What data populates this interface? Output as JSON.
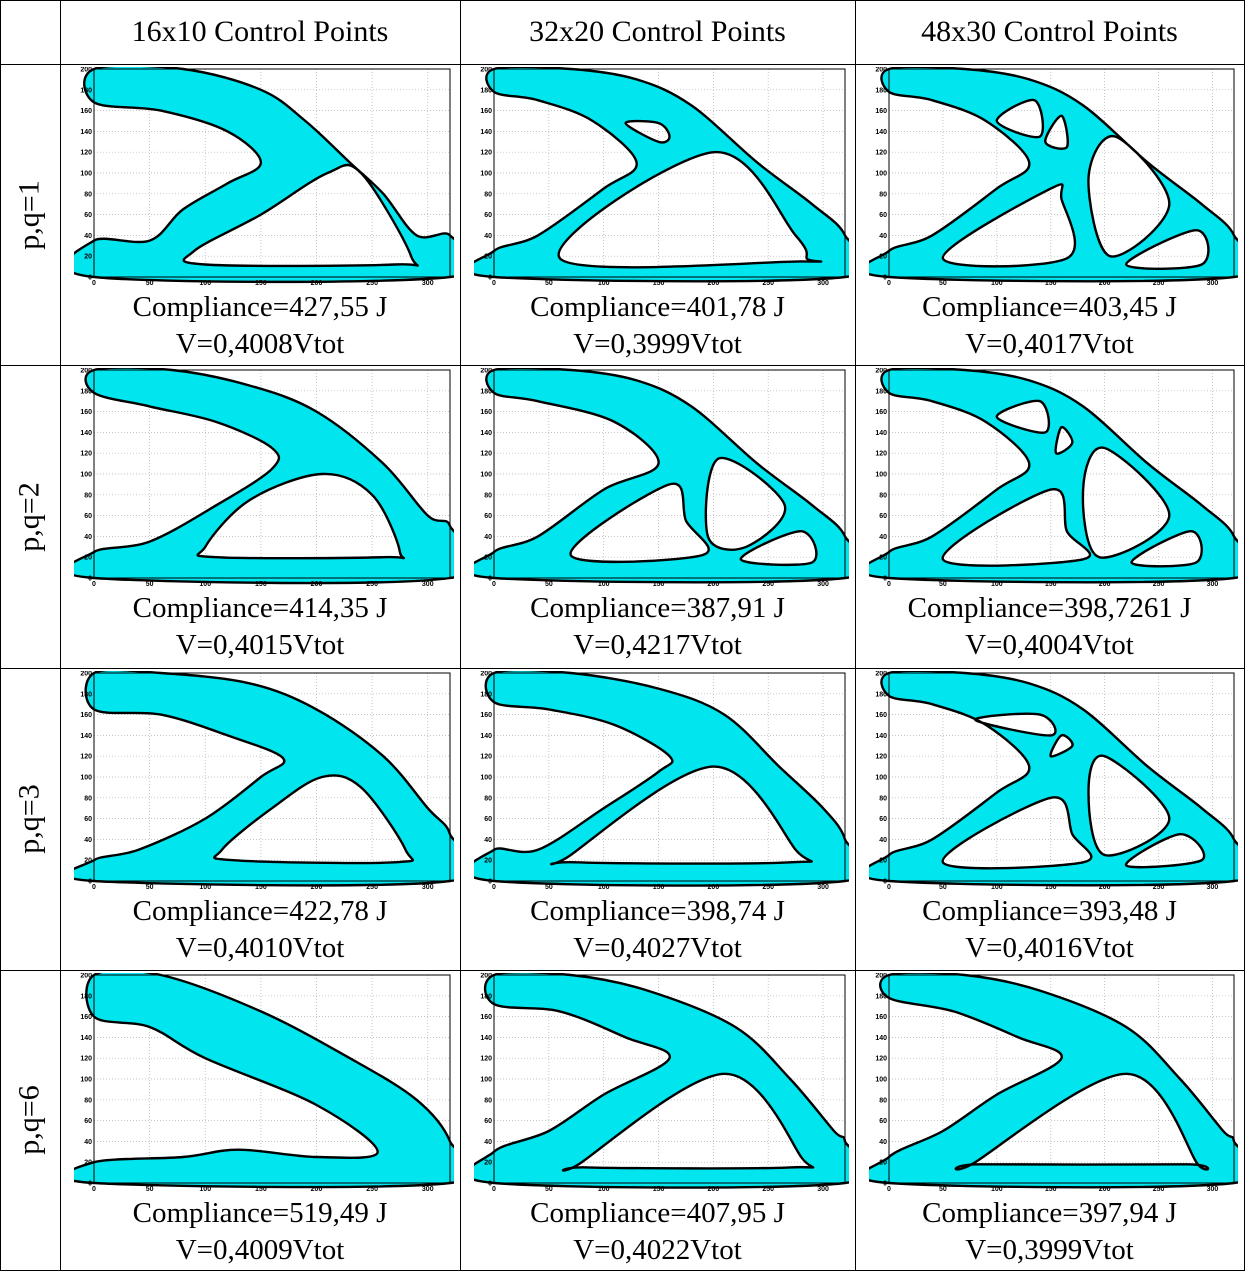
{
  "columns": [
    "16x10 Control Points",
    "32x20 Control Points",
    "48x30 Control Points"
  ],
  "rows": [
    {
      "label": "p,q=1",
      "cells": [
        {
          "compliance": "Compliance=427,55 J",
          "volume": "V=0,4008Vtot"
        },
        {
          "compliance": "Compliance=401,78 J",
          "volume": "V=0,3999Vtot"
        },
        {
          "compliance": "Compliance=403,45 J",
          "volume": "V=0,4017Vtot"
        }
      ]
    },
    {
      "label": "p,q=2",
      "cells": [
        {
          "compliance": "Compliance=414,35 J",
          "volume": "V=0,4015Vtot"
        },
        {
          "compliance": "Compliance=387,91 J",
          "volume": "V=0,4217Vtot"
        },
        {
          "compliance": "Compliance=398,7261 J",
          "volume": "V=0,4004Vtot"
        }
      ]
    },
    {
      "label": "p,q=3",
      "cells": [
        {
          "compliance": "Compliance=422,78 J",
          "volume": "V=0,4010Vtot"
        },
        {
          "compliance": "Compliance=398,74 J",
          "volume": "V=0,4027Vtot"
        },
        {
          "compliance": "Compliance=393,48 J",
          "volume": "V=0,4016Vtot"
        }
      ]
    },
    {
      "label": "p,q=6",
      "cells": [
        {
          "compliance": "Compliance=519,49 J",
          "volume": "V=0,4009Vtot"
        },
        {
          "compliance": "Compliance=407,95 J",
          "volume": "V=0,4022Vtot"
        },
        {
          "compliance": "Compliance=397,94 J",
          "volume": "V=0,3999Vtot"
        }
      ]
    }
  ],
  "plot_axes": {
    "x_ticks": [
      "0",
      "50",
      "100",
      "150",
      "200",
      "250",
      "300"
    ],
    "y_ticks": [
      "0",
      "20",
      "40",
      "60",
      "80",
      "100",
      "120",
      "140",
      "160",
      "180",
      "200"
    ],
    "xlim": [
      0,
      320
    ],
    "ylim": [
      0,
      200
    ],
    "grid": true
  },
  "colors": {
    "material": "#00e5ee",
    "outline": "#000000",
    "grid": "#b0b0b0"
  }
}
